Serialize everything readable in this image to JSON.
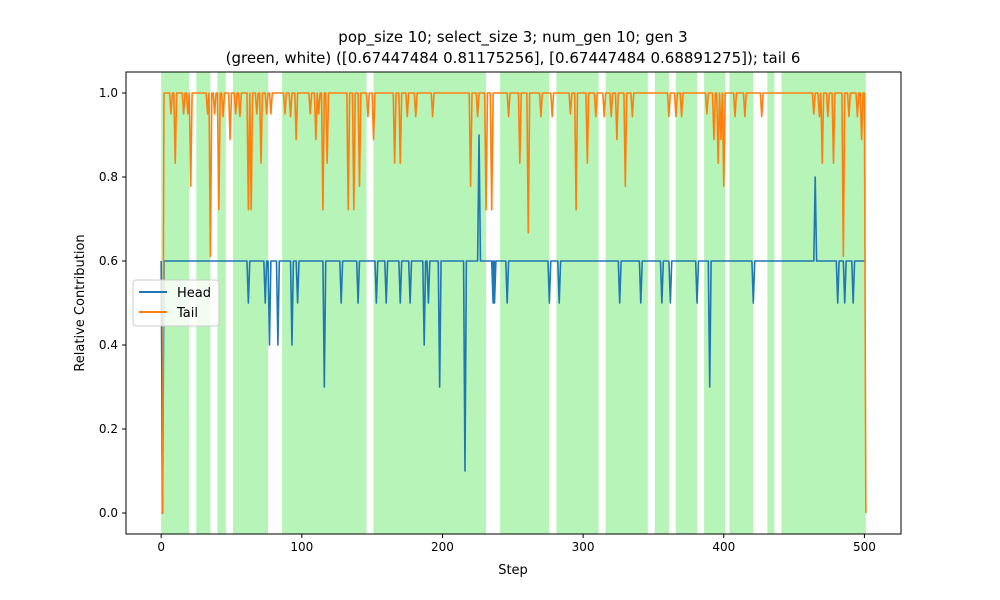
{
  "chart_data": {
    "type": "line",
    "title_line1": "pop_size 10; select_size 3; num_gen 10; gen 3",
    "title_line2": "(green, white) ([0.67447484 0.81175256], [0.67447484 0.68891275]); tail 6",
    "xlabel": "Step",
    "ylabel": "Relative Contribution",
    "xlim": [
      -25,
      526
    ],
    "ylim": [
      -0.05,
      1.05
    ],
    "xticks": [
      0,
      100,
      200,
      300,
      400,
      500
    ],
    "yticks": [
      0.0,
      0.2,
      0.4,
      0.6,
      0.8,
      1.0
    ],
    "ytick_labels": [
      "0.0",
      "0.2",
      "0.4",
      "0.6",
      "0.8",
      "1.0"
    ],
    "grid": false,
    "legend_position": "center-left",
    "shaded_regions_color": "#90ee90",
    "shaded_regions": [
      [
        0,
        20
      ],
      [
        25,
        35
      ],
      [
        40,
        46
      ],
      [
        51,
        76
      ],
      [
        86,
        146
      ],
      [
        151,
        231
      ],
      [
        241,
        276
      ],
      [
        281,
        311
      ],
      [
        316,
        346
      ],
      [
        351,
        361
      ],
      [
        366,
        381
      ],
      [
        386,
        401
      ],
      [
        404,
        421
      ],
      [
        431,
        436
      ],
      [
        441,
        501
      ]
    ],
    "series": [
      {
        "name": "Head",
        "color": "#1f77b4",
        "baseline": 0.6,
        "start": [
          [
            0,
            0.6
          ],
          [
            1,
            0.0
          ],
          [
            2,
            0.6
          ]
        ],
        "dips": [
          [
            62,
            0.5
          ],
          [
            71,
            0.6
          ],
          [
            74,
            0.5
          ],
          [
            77,
            0.4
          ],
          [
            79,
            0.6
          ],
          [
            83,
            0.4
          ],
          [
            85,
            0.6
          ],
          [
            93,
            0.4
          ],
          [
            95,
            0.6
          ],
          [
            97,
            0.5
          ],
          [
            116,
            0.3
          ],
          [
            128,
            0.5
          ],
          [
            140,
            0.5
          ],
          [
            153,
            0.5
          ],
          [
            157,
            0.6
          ],
          [
            160,
            0.5
          ],
          [
            170,
            0.5
          ],
          [
            175,
            0.6
          ],
          [
            177,
            0.5
          ],
          [
            187,
            0.4
          ],
          [
            190,
            0.5
          ],
          [
            198,
            0.3
          ],
          [
            216,
            0.1
          ],
          [
            226,
            0.9
          ],
          [
            236,
            0.5
          ],
          [
            237,
            0.5
          ],
          [
            246,
            0.5
          ],
          [
            276,
            0.5
          ],
          [
            283,
            0.5
          ],
          [
            326,
            0.5
          ],
          [
            341,
            0.5
          ],
          [
            356,
            0.5
          ],
          [
            362,
            0.5
          ],
          [
            381,
            0.5
          ],
          [
            390,
            0.3
          ],
          [
            421,
            0.5
          ],
          [
            465,
            0.8
          ],
          [
            481,
            0.5
          ],
          [
            486,
            0.5
          ],
          [
            492,
            0.5
          ]
        ],
        "end": [
          [
            500,
            0.6
          ],
          [
            501,
            0.6
          ]
        ]
      },
      {
        "name": "Tail",
        "color": "#ff7f0e",
        "baseline": 1.0,
        "start": [
          [
            0,
            0.0
          ],
          [
            1,
            0.0
          ],
          [
            2,
            1.0
          ]
        ],
        "dips": [
          [
            7,
            0.95
          ],
          [
            10,
            0.833
          ],
          [
            16,
            0.95
          ],
          [
            19,
            0.95
          ],
          [
            21,
            0.778
          ],
          [
            33,
            0.95
          ],
          [
            35,
            0.611
          ],
          [
            38,
            0.95
          ],
          [
            41,
            0.722
          ],
          [
            44,
            0.944
          ],
          [
            49,
            0.889
          ],
          [
            53,
            0.95
          ],
          [
            56,
            0.944
          ],
          [
            62,
            0.722
          ],
          [
            64,
            0.722
          ],
          [
            68,
            0.95
          ],
          [
            71,
            0.833
          ],
          [
            75,
            0.95
          ],
          [
            78,
            0.95
          ],
          [
            88,
            0.95
          ],
          [
            92,
            0.944
          ],
          [
            96,
            0.889
          ],
          [
            106,
            0.95
          ],
          [
            110,
            0.889
          ],
          [
            112,
            0.95
          ],
          [
            115,
            0.722
          ],
          [
            118,
            0.833
          ],
          [
            133,
            0.722
          ],
          [
            137,
            0.722
          ],
          [
            141,
            0.778
          ],
          [
            147,
            0.944
          ],
          [
            151,
            0.889
          ],
          [
            166,
            0.833
          ],
          [
            170,
            0.833
          ],
          [
            175,
            0.944
          ],
          [
            181,
            0.944
          ],
          [
            193,
            0.944
          ],
          [
            220,
            0.778
          ],
          [
            225,
            0.944
          ],
          [
            231,
            0.722
          ],
          [
            235,
            0.722
          ],
          [
            247,
            0.944
          ],
          [
            255,
            0.833
          ],
          [
            261,
            0.667
          ],
          [
            270,
            0.944
          ],
          [
            278,
            0.944
          ],
          [
            291,
            0.95
          ],
          [
            295,
            0.722
          ],
          [
            303,
            0.833
          ],
          [
            309,
            0.944
          ],
          [
            315,
            0.944
          ],
          [
            320,
            0.944
          ],
          [
            324,
            0.889
          ],
          [
            330,
            0.778
          ],
          [
            335,
            0.944
          ],
          [
            361,
            0.944
          ],
          [
            366,
            0.944
          ],
          [
            370,
            0.944
          ],
          [
            388,
            0.95
          ],
          [
            393,
            0.889
          ],
          [
            396,
            0.833
          ],
          [
            398,
            0.889
          ],
          [
            400,
            0.778
          ],
          [
            408,
            0.944
          ],
          [
            415,
            0.944
          ],
          [
            427,
            0.944
          ],
          [
            464,
            0.95
          ],
          [
            468,
            0.944
          ],
          [
            470,
            0.833
          ],
          [
            474,
            0.944
          ],
          [
            478,
            0.833
          ],
          [
            485,
            0.611
          ],
          [
            489,
            0.944
          ],
          [
            495,
            0.944
          ],
          [
            498,
            0.889
          ]
        ],
        "end": [
          [
            500,
            1.0
          ],
          [
            501,
            0.0
          ]
        ]
      }
    ]
  }
}
